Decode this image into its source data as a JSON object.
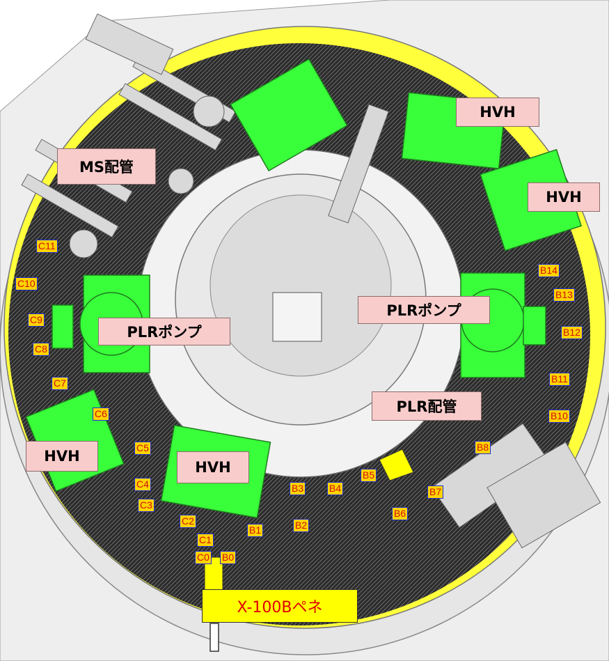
{
  "labels": {
    "ms_piping": "MS配管",
    "hvh": "HVH",
    "plr_pump": "PLRポンプ",
    "plr_piping": "PLR配管",
    "penetration": "X-100Bペネ"
  },
  "markers": {
    "b0": "B0",
    "b1": "B1",
    "b2": "B2",
    "b3": "B3",
    "b4": "B4",
    "b5": "B5",
    "b6": "B6",
    "b7": "B7",
    "b8": "B8",
    "b10": "B10",
    "b11": "B11",
    "b12": "B12",
    "b13": "B13",
    "b14": "B14",
    "c0": "C0",
    "c1": "C1",
    "c2": "C2",
    "c3": "C3",
    "c4": "C4",
    "c5": "C5",
    "c6": "C6",
    "c7": "C7",
    "c8": "C8",
    "c9": "C9",
    "c10": "C10",
    "c11": "C11"
  },
  "colors": {
    "equipment": "#39ff3a",
    "wall": "#ffff3c",
    "label_bg": "#f9cccc",
    "marker_bg": "#ffd400",
    "marker_border": "#1e2fd8",
    "marker_text": "#d01010"
  }
}
